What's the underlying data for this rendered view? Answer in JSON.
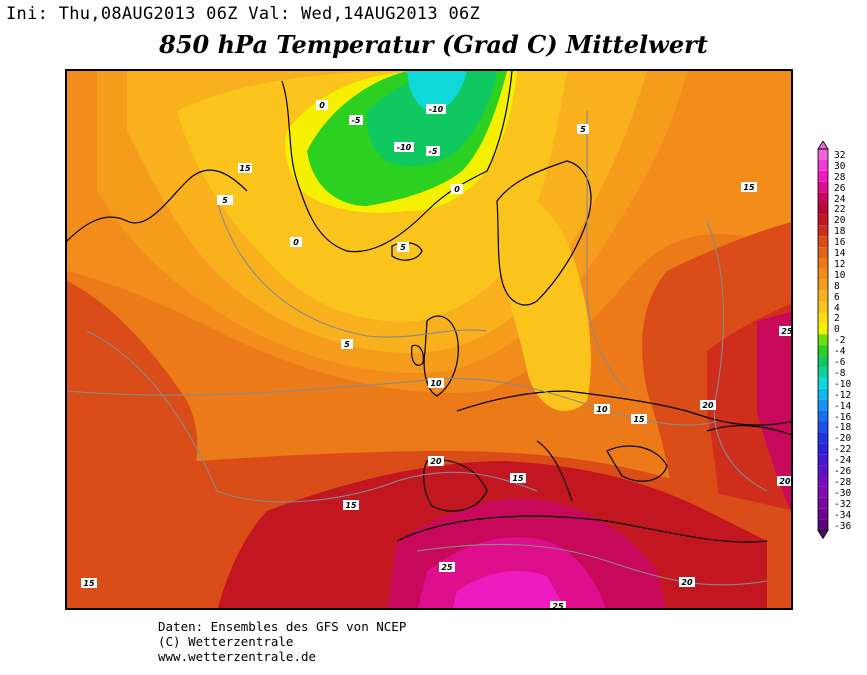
{
  "header": {
    "init_line": "Ini: Thu,08AUG2013 06Z Val: Wed,14AUG2013 06Z",
    "title": "850 hPa Temperatur (Grad C) Mittelwert"
  },
  "credits": {
    "line1": "Daten: Ensembles des GFS von NCEP",
    "line2": "(C) Wetterzentrale",
    "line3": "www.wetterzentrale.de"
  },
  "legend": {
    "entries": [
      {
        "value": "32",
        "color": "#f064d8"
      },
      {
        "value": "30",
        "color": "#f03cd0"
      },
      {
        "value": "28",
        "color": "#ee1cc0"
      },
      {
        "value": "26",
        "color": "#de0e8c"
      },
      {
        "value": "24",
        "color": "#c8085a"
      },
      {
        "value": "22",
        "color": "#b80a34"
      },
      {
        "value": "20",
        "color": "#c21620"
      },
      {
        "value": "18",
        "color": "#cf2e1c"
      },
      {
        "value": "16",
        "color": "#da4c18"
      },
      {
        "value": "14",
        "color": "#e26418"
      },
      {
        "value": "12",
        "color": "#ec7a18"
      },
      {
        "value": "10",
        "color": "#f28c1a"
      },
      {
        "value": "8",
        "color": "#f59c1c"
      },
      {
        "value": "6",
        "color": "#f8b01c"
      },
      {
        "value": "4",
        "color": "#fac41c"
      },
      {
        "value": "2",
        "color": "#fcde14"
      },
      {
        "value": "0",
        "color": "#f4f000"
      },
      {
        "value": "-2",
        "color": "#70e010"
      },
      {
        "value": "-4",
        "color": "#2cd020"
      },
      {
        "value": "-6",
        "color": "#10c860"
      },
      {
        "value": "-8",
        "color": "#10d0a0"
      },
      {
        "value": "-10",
        "color": "#10d8d8"
      },
      {
        "value": "-12",
        "color": "#10b8ec"
      },
      {
        "value": "-14",
        "color": "#1494f0"
      },
      {
        "value": "-16",
        "color": "#1870ec"
      },
      {
        "value": "-18",
        "color": "#1c50e8"
      },
      {
        "value": "-20",
        "color": "#2034e0"
      },
      {
        "value": "-22",
        "color": "#2c20d8"
      },
      {
        "value": "-24",
        "color": "#4418d0"
      },
      {
        "value": "-26",
        "color": "#5c14c8"
      },
      {
        "value": "-28",
        "color": "#7410c0"
      },
      {
        "value": "-30",
        "color": "#800cb0"
      },
      {
        "value": "-32",
        "color": "#7a08a0"
      },
      {
        "value": "-34",
        "color": "#6c0690"
      },
      {
        "value": "-36",
        "color": "#5a0478"
      }
    ]
  },
  "isotherm_labels": [
    {
      "text": "0"
    },
    {
      "text": "-5"
    },
    {
      "text": "-10"
    },
    {
      "text": "-10"
    },
    {
      "text": "-5"
    },
    {
      "text": "0"
    },
    {
      "text": "0"
    },
    {
      "text": "5"
    },
    {
      "text": "5"
    },
    {
      "text": "15"
    },
    {
      "text": "15"
    },
    {
      "text": "5"
    },
    {
      "text": "5"
    },
    {
      "text": "10"
    },
    {
      "text": "10"
    },
    {
      "text": "15"
    },
    {
      "text": "25"
    },
    {
      "text": "20"
    },
    {
      "text": "20"
    },
    {
      "text": "15"
    },
    {
      "text": "20"
    },
    {
      "text": "15"
    },
    {
      "text": "25"
    },
    {
      "text": "20"
    },
    {
      "text": "25"
    },
    {
      "text": "15"
    }
  ]
}
